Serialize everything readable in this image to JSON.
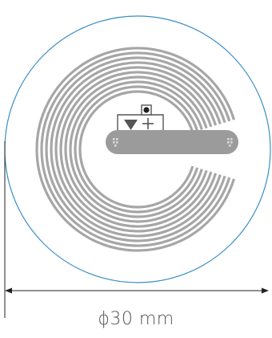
{
  "diagram": {
    "dimension_label": "ϕ30 mm",
    "colors": {
      "outline": "#3a8fc4",
      "coil": "#a6a6a6",
      "bridge": "#9b9b9b",
      "pad_mark": "#d8d8d8",
      "chip": "#222222",
      "chip_stroke": "#555555",
      "dimension_line": "#222222",
      "text": "#555555"
    },
    "icons": {
      "chip": "ic-chip-square",
      "diode": "triangle-down-icon",
      "polarity": "plus-icon",
      "arrows": "double-arrow-icon"
    }
  }
}
